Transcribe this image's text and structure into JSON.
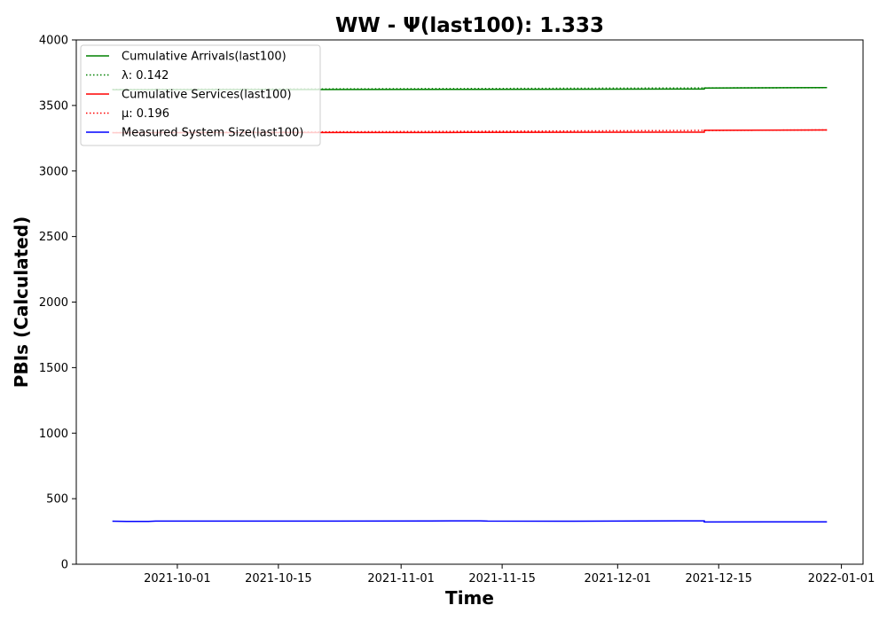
{
  "chart_data": {
    "type": "line",
    "title": "WW -  Ψ(last100): 1.333",
    "xlabel": "Time",
    "ylabel": "PBIs (Calculated)",
    "x_type": "date",
    "xlim": [
      "2021-09-17",
      "2022-01-04"
    ],
    "ylim": [
      0,
      4000
    ],
    "x_ticks": [
      "2021-10-01",
      "2021-10-15",
      "2021-11-01",
      "2021-11-15",
      "2021-12-01",
      "2021-12-15",
      "2022-01-01"
    ],
    "y_ticks": [
      0,
      500,
      1000,
      1500,
      2000,
      2500,
      3000,
      3500,
      4000
    ],
    "grid": false,
    "legend_position": "top-left",
    "series": [
      {
        "name": "Cumulative Arrivals(last100)",
        "color": "#008000",
        "style": "solid",
        "points": [
          [
            "2021-09-22",
            3620
          ],
          [
            "2021-10-15",
            3621
          ],
          [
            "2021-11-10",
            3623
          ],
          [
            "2021-12-13",
            3625
          ],
          [
            "2021-12-13",
            3633
          ],
          [
            "2021-12-30",
            3636
          ]
        ]
      },
      {
        "name": "λ: 0.142",
        "color": "#008000",
        "style": "dotted",
        "points": [
          [
            "2021-09-22",
            3622
          ],
          [
            "2021-12-30",
            3636
          ]
        ]
      },
      {
        "name": "Cumulative Services(last100)",
        "color": "#ff0000",
        "style": "solid",
        "points": [
          [
            "2021-09-22",
            3292
          ],
          [
            "2021-10-15",
            3293
          ],
          [
            "2021-11-10",
            3294
          ],
          [
            "2021-12-13",
            3296
          ],
          [
            "2021-12-13",
            3310
          ],
          [
            "2021-12-30",
            3313
          ]
        ]
      },
      {
        "name": "μ: 0.196",
        "color": "#ff0000",
        "style": "dotted",
        "points": [
          [
            "2021-09-22",
            3293
          ],
          [
            "2021-12-30",
            3313
          ]
        ]
      },
      {
        "name": "Measured System Size(last100)",
        "color": "#0000ff",
        "style": "solid",
        "points": [
          [
            "2021-09-22",
            328
          ],
          [
            "2021-09-24",
            326
          ],
          [
            "2021-09-27",
            327
          ],
          [
            "2021-09-28",
            329
          ],
          [
            "2021-10-20",
            329
          ],
          [
            "2021-11-05",
            330
          ],
          [
            "2021-11-12",
            331
          ],
          [
            "2021-11-13",
            329
          ],
          [
            "2021-11-25",
            328
          ],
          [
            "2021-12-13",
            331
          ],
          [
            "2021-12-13",
            322
          ],
          [
            "2021-12-22",
            323
          ],
          [
            "2021-12-30",
            323
          ]
        ]
      }
    ]
  }
}
